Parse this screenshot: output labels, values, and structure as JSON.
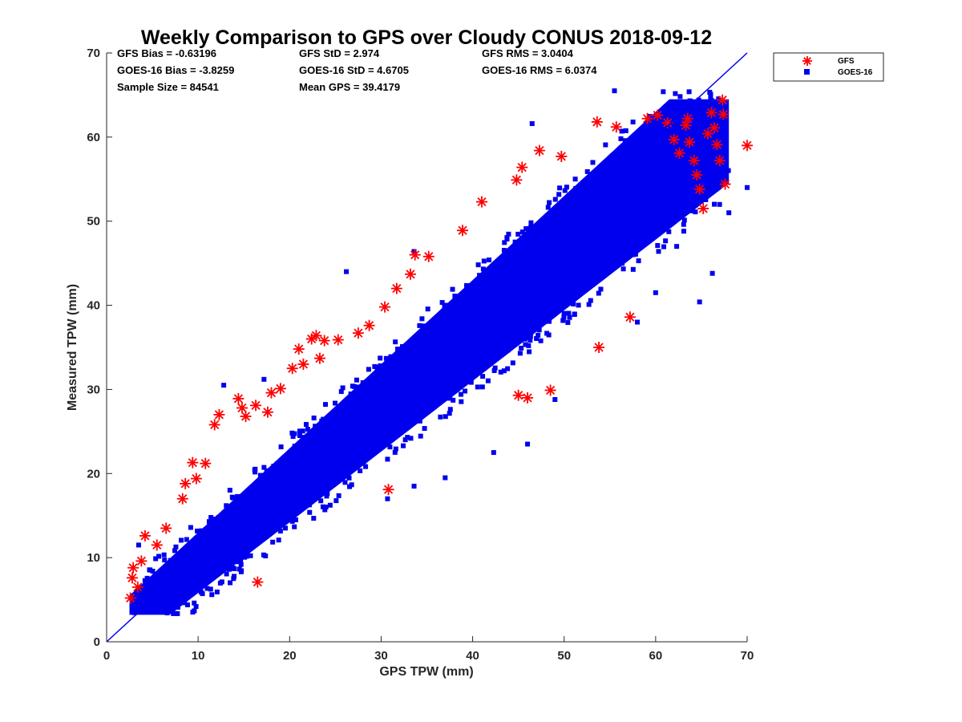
{
  "chart_data": {
    "type": "scatter",
    "title": "Weekly Comparison to GPS over Cloudy CONUS 2018-09-12",
    "xlabel": "GPS TPW (mm)",
    "ylabel": "Measured TPW (mm)",
    "xlim": [
      0,
      70
    ],
    "ylim": [
      0,
      70
    ],
    "xticks": [
      "0",
      "10",
      "20",
      "30",
      "40",
      "50",
      "60",
      "70"
    ],
    "yticks": [
      "0",
      "10",
      "20",
      "30",
      "40",
      "50",
      "60",
      "70"
    ],
    "grid": false,
    "legend_position": "top-right outside",
    "reference_line": {
      "from": [
        0,
        0
      ],
      "to": [
        70,
        70
      ],
      "color": "#0000ee"
    },
    "stats": [
      [
        "GFS Bias = -0.63196",
        "GFS StD = 2.974",
        "GFS RMS = 3.0404"
      ],
      [
        "GOES-16 Bias = -3.8259",
        "GOES-16 StD = 4.6705",
        "GOES-16 RMS = 6.0374"
      ],
      [
        "Sample Size = 84541",
        "Mean GPS = 39.4179",
        ""
      ]
    ],
    "series": [
      {
        "name": "GFS",
        "marker": "asterisk",
        "color": "#ff0000",
        "points": [
          [
            2.6,
            5.2
          ],
          [
            2.8,
            7.6
          ],
          [
            2.9,
            8.8
          ],
          [
            3.4,
            6.5
          ],
          [
            3.8,
            9.6
          ],
          [
            4.2,
            12.6
          ],
          [
            5.5,
            11.5
          ],
          [
            6.5,
            13.5
          ],
          [
            8.3,
            17.0
          ],
          [
            8.6,
            18.8
          ],
          [
            9.4,
            21.3
          ],
          [
            9.8,
            19.4
          ],
          [
            10.8,
            21.2
          ],
          [
            11.8,
            25.8
          ],
          [
            12.3,
            27.0
          ],
          [
            14.4,
            28.9
          ],
          [
            14.8,
            27.8
          ],
          [
            15.2,
            26.8
          ],
          [
            16.3,
            28.1
          ],
          [
            17.6,
            27.3
          ],
          [
            18.0,
            29.6
          ],
          [
            19.0,
            30.1
          ],
          [
            20.3,
            32.5
          ],
          [
            21.0,
            34.8
          ],
          [
            21.5,
            33.0
          ],
          [
            22.4,
            36.0
          ],
          [
            22.9,
            36.4
          ],
          [
            23.3,
            33.7
          ],
          [
            23.8,
            35.8
          ],
          [
            25.3,
            35.9
          ],
          [
            27.5,
            36.7
          ],
          [
            28.7,
            37.6
          ],
          [
            30.4,
            39.8
          ],
          [
            31.7,
            42.0
          ],
          [
            33.2,
            43.7
          ],
          [
            33.7,
            46.0
          ],
          [
            35.2,
            45.8
          ],
          [
            38.9,
            48.9
          ],
          [
            41.0,
            52.3
          ],
          [
            44.8,
            54.9
          ],
          [
            45.4,
            56.4
          ],
          [
            47.3,
            58.4
          ],
          [
            49.7,
            57.7
          ],
          [
            53.6,
            61.8
          ],
          [
            55.7,
            61.2
          ],
          [
            59.1,
            62.2
          ],
          [
            60.2,
            62.6
          ],
          [
            61.3,
            61.7
          ],
          [
            62.0,
            59.7
          ],
          [
            62.6,
            58.1
          ],
          [
            63.3,
            61.4
          ],
          [
            63.5,
            62.2
          ],
          [
            63.7,
            59.4
          ],
          [
            64.2,
            57.2
          ],
          [
            64.5,
            55.5
          ],
          [
            64.8,
            53.8
          ],
          [
            65.2,
            51.5
          ],
          [
            65.7,
            60.4
          ],
          [
            66.1,
            62.9
          ],
          [
            66.4,
            61.1
          ],
          [
            66.7,
            59.1
          ],
          [
            67.0,
            57.2
          ],
          [
            67.3,
            64.4
          ],
          [
            67.4,
            62.7
          ],
          [
            67.6,
            54.4
          ],
          [
            70.0,
            59.0
          ],
          [
            57.2,
            38.6
          ],
          [
            53.8,
            35.0
          ],
          [
            46.0,
            29.0
          ],
          [
            48.5,
            29.9
          ],
          [
            16.5,
            7.1
          ],
          [
            45.0,
            29.3
          ],
          [
            30.8,
            18.1
          ]
        ]
      },
      {
        "name": "GOES-16",
        "marker": "square",
        "color": "#0000ee",
        "band": {
          "x_range": [
            2.5,
            68
          ],
          "lower": {
            "slope": 0.84,
            "intercept": -2.6
          },
          "upper": {
            "slope": 1.0,
            "intercept": 3.0
          }
        },
        "outliers": [
          [
            3.5,
            11.5
          ],
          [
            12.8,
            30.5
          ],
          [
            17.2,
            31.2
          ],
          [
            26.2,
            44.0
          ],
          [
            33.6,
            46.4
          ],
          [
            46.5,
            61.6
          ],
          [
            55.5,
            65.5
          ],
          [
            64.8,
            40.4
          ],
          [
            66.2,
            43.8
          ],
          [
            62.3,
            47.0
          ],
          [
            60.0,
            41.5
          ],
          [
            49.0,
            28.8
          ],
          [
            46.0,
            23.5
          ],
          [
            42.3,
            22.5
          ],
          [
            37.0,
            19.5
          ],
          [
            33.6,
            18.5
          ],
          [
            30.7,
            17.0
          ],
          [
            68.0,
            51.0
          ],
          [
            70.0,
            54.0
          ],
          [
            58.0,
            38.0
          ]
        ]
      }
    ]
  }
}
